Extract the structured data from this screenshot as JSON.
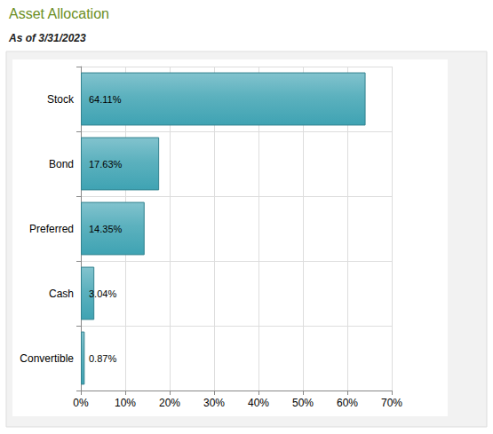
{
  "chart_data": {
    "type": "bar",
    "title": "Asset Allocation",
    "subtitle": "As of 3/31/2023",
    "orientation": "horizontal",
    "categories": [
      "Stock",
      "Bond",
      "Preferred",
      "Cash",
      "Convertible"
    ],
    "values": [
      64.11,
      17.63,
      14.35,
      3.04,
      0.87
    ],
    "value_labels": [
      "64.11%",
      "17.63%",
      "14.35%",
      "3.04%",
      "0.87%"
    ],
    "data_labels": true,
    "color": "#3fa3b3",
    "xlim": [
      0,
      70
    ],
    "xticks": [
      {
        "value": 0,
        "label": "0%"
      },
      {
        "value": 10,
        "label": "10%"
      },
      {
        "value": 20,
        "label": "20%"
      },
      {
        "value": 30,
        "label": "30%"
      },
      {
        "value": 40,
        "label": "40%"
      },
      {
        "value": 50,
        "label": "50%"
      },
      {
        "value": 60,
        "label": "60%"
      },
      {
        "value": 70,
        "label": "70%"
      }
    ],
    "grid": true
  }
}
